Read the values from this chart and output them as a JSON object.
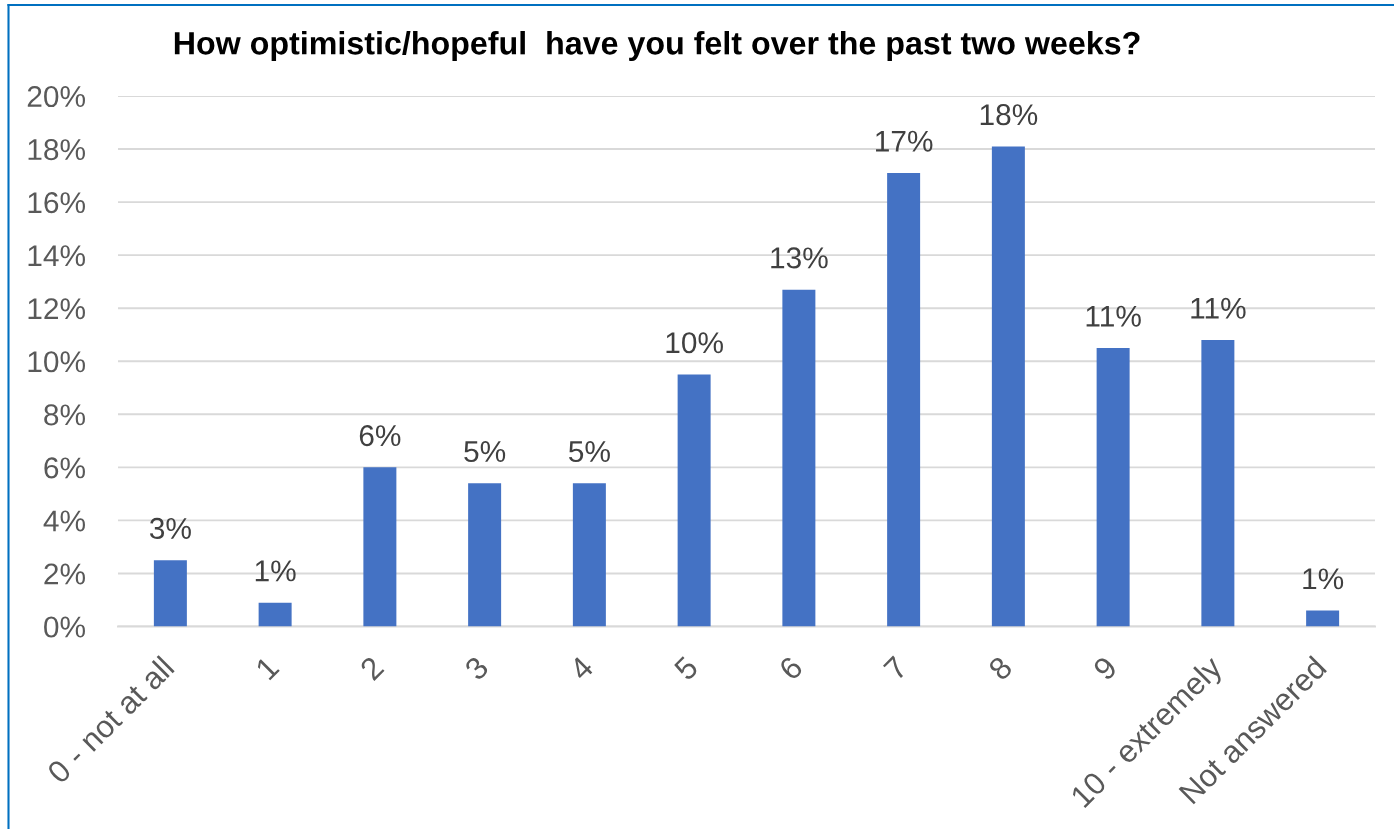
{
  "chart_data": {
    "type": "bar",
    "title": "How optimistic/hopeful  have you felt over the past two weeks?",
    "categories": [
      "0 - not at all",
      "1",
      "2",
      "3",
      "4",
      "5",
      "6",
      "7",
      "8",
      "9",
      "10 - extremely",
      "Not answered"
    ],
    "values": [
      2.5,
      0.9,
      6.0,
      5.4,
      5.4,
      9.5,
      12.7,
      17.1,
      18.1,
      10.5,
      10.8,
      0.6
    ],
    "value_labels": [
      "3%",
      "1%",
      "6%",
      "5%",
      "5%",
      "10%",
      "13%",
      "17%",
      "18%",
      "11%",
      "11%",
      "1%"
    ],
    "color": "#4472c4",
    "ylim": [
      0,
      20
    ],
    "yticks": [
      {
        "value": 0,
        "label": "0%"
      },
      {
        "value": 2,
        "label": "2%"
      },
      {
        "value": 4,
        "label": "4%"
      },
      {
        "value": 6,
        "label": "6%"
      },
      {
        "value": 8,
        "label": "8%"
      },
      {
        "value": 10,
        "label": "10%"
      },
      {
        "value": 12,
        "label": "12%"
      },
      {
        "value": 14,
        "label": "14%"
      },
      {
        "value": 16,
        "label": "16%"
      },
      {
        "value": 18,
        "label": "18%"
      },
      {
        "value": 20,
        "label": "20%"
      }
    ],
    "grid": "y"
  }
}
